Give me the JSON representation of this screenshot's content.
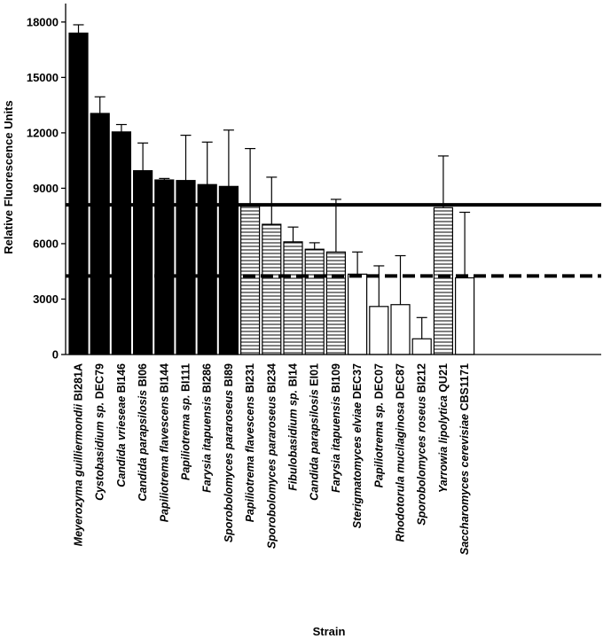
{
  "chart_data": {
    "type": "bar",
    "xlabel": "Strain",
    "ylabel": "Relative Fluorescence Units",
    "ylim": [
      0,
      19000
    ],
    "yticks": [
      0,
      3000,
      6000,
      9000,
      12000,
      15000,
      18000
    ],
    "grid": false,
    "categories": [
      {
        "genus": "Meyerozyma guilliermondii",
        "strain": "BI281A"
      },
      {
        "genus": "Cystobasidium sp.",
        "strain": "DEC79"
      },
      {
        "genus": "Candida vrieseae",
        "strain": "BI146"
      },
      {
        "genus": "Candida parapsilosis",
        "strain": "BI06"
      },
      {
        "genus": "Papiliotrema flavescens",
        "strain": "BI144"
      },
      {
        "genus": "Papiliotrema sp.",
        "strain": "BI111"
      },
      {
        "genus": "Farysia itapuensis",
        "strain": "BI286"
      },
      {
        "genus": "Sporobolomyces pararoseus",
        "strain": "BI89"
      },
      {
        "genus": "Papiliotrema flavescens",
        "strain": "BI231"
      },
      {
        "genus": "Sporobolomyces pararoseus",
        "strain": "BI234"
      },
      {
        "genus": "Fibulobasidium sp.",
        "strain": "BI14"
      },
      {
        "genus": "Candida parapsilosis",
        "strain": "EI01"
      },
      {
        "genus": "Farysia itapuensis",
        "strain": "BI109"
      },
      {
        "genus": "Sterigmatomyces elviae",
        "strain": "DEC37"
      },
      {
        "genus": "Papiliotrema sp.",
        "strain": "DEC07"
      },
      {
        "genus": "Rhodotorula mucilaginosa",
        "strain": "DEC87"
      },
      {
        "genus": "Sporobolomyces roseus",
        "strain": "BI212"
      },
      {
        "genus": "Yarrowia lipolytica",
        "strain": "QU21"
      },
      {
        "genus": "Saccharomyces cerevisiae",
        "strain": "CBS1171"
      }
    ],
    "values": [
      17400,
      13050,
      12050,
      9950,
      9450,
      9420,
      9200,
      9100,
      8150,
      7050,
      6100,
      5700,
      5550,
      4350,
      2600,
      2700,
      850,
      7950,
      4150
    ],
    "errors": [
      450,
      900,
      400,
      1500,
      80,
      2450,
      2300,
      3050,
      3000,
      2550,
      800,
      350,
      2850,
      1200,
      2200,
      2650,
      1150,
      2800,
      3550
    ],
    "fills": [
      "solid",
      "solid",
      "solid",
      "solid",
      "solid",
      "solid",
      "solid",
      "solid",
      "hatch",
      "hatch",
      "hatch",
      "hatch",
      "hatch",
      "open",
      "open",
      "open",
      "open",
      "hatch",
      "open"
    ],
    "reference_lines": [
      {
        "value": 8100,
        "style": "solid"
      },
      {
        "value": 4250,
        "style": "dashed"
      }
    ]
  }
}
